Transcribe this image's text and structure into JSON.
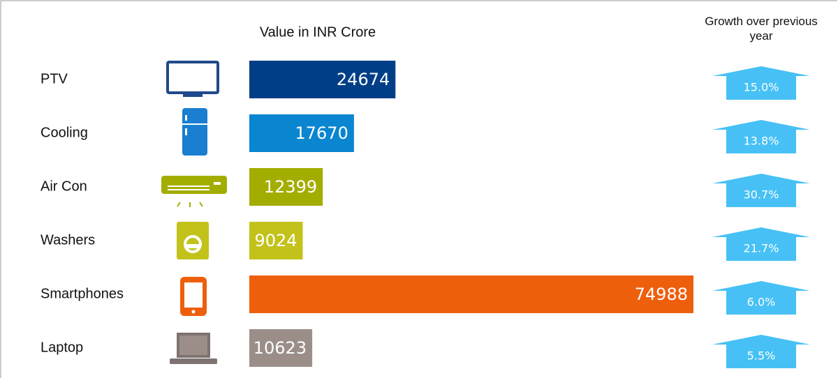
{
  "chart_data": {
    "type": "bar",
    "orientation": "horizontal",
    "value_title": "Value in INR Crore",
    "growth_title": "Growth over previous year",
    "categories": [
      "PTV",
      "Cooling",
      "Air Con",
      "Washers",
      "Smartphones",
      "Laptop"
    ],
    "values": [
      24674,
      17670,
      12399,
      9024,
      74988,
      10623
    ],
    "colors": [
      "#003f87",
      "#0a85d0",
      "#a3ad00",
      "#c3c21a",
      "#ee5f0c",
      "#9b8e89"
    ],
    "growth": {
      "color": "#47c1f5",
      "values": [
        15.0,
        13.8,
        30.7,
        21.7,
        6.0,
        5.5
      ],
      "value_labels": [
        "15.0%",
        "13.8%",
        "30.7%",
        "21.7%",
        "6.0%",
        "5.5%"
      ]
    }
  }
}
